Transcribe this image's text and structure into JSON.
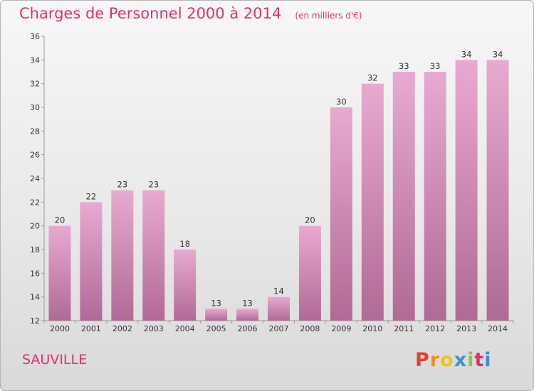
{
  "header": {
    "title": "Charges de Personnel 2000 à 2014",
    "subtitle": "(en milliers d'€)"
  },
  "footer": {
    "city": "SAUVILLE",
    "logo_text": "Proxiti",
    "logo_colors": [
      "#e8402a",
      "#f28c1e",
      "#f2c21b",
      "#3a8fd6",
      "#8cc63f",
      "#e0306f",
      "#3a8fd6"
    ]
  },
  "chart_data": {
    "type": "bar",
    "categories": [
      "2000",
      "2001",
      "2002",
      "2003",
      "2004",
      "2005",
      "2006",
      "2007",
      "2008",
      "2009",
      "2010",
      "2011",
      "2012",
      "2013",
      "2014"
    ],
    "values": [
      20,
      22,
      23,
      23,
      18,
      13,
      13,
      14,
      20,
      30,
      32,
      33,
      33,
      34,
      34
    ],
    "ylim": [
      12,
      36
    ],
    "yticks": [
      12,
      14,
      16,
      18,
      20,
      22,
      24,
      26,
      28,
      30,
      32,
      34,
      36
    ],
    "grid": false,
    "bar_color_top": "#e8aad0",
    "bar_color_bottom": "#b06a95"
  }
}
